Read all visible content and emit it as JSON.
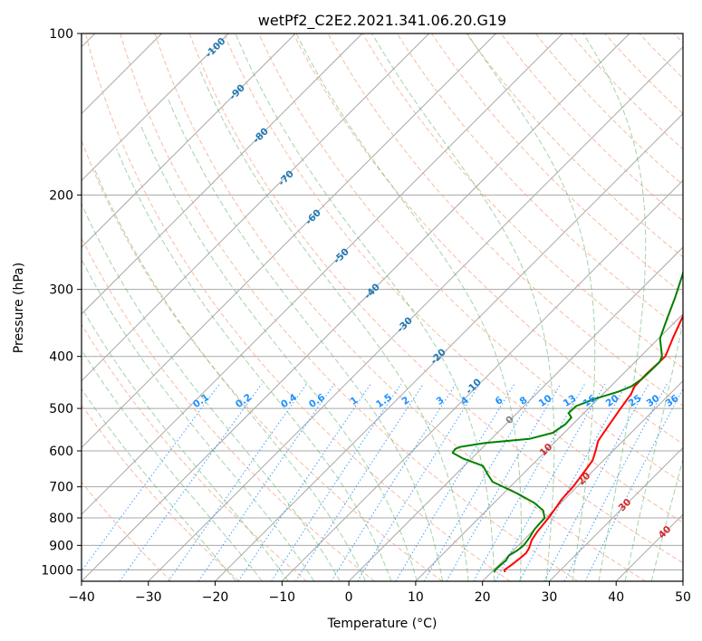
{
  "chart_data": {
    "type": "line",
    "title": "wetPf2_C2E2.2021.341.06.20.G19",
    "xlabel": "Temperature (°C)",
    "ylabel": "Pressure (hPa)",
    "xlim": [
      -40,
      50
    ],
    "ylim": [
      1050,
      100
    ],
    "xticks": [
      "−40",
      "−30",
      "−20",
      "−10",
      "0",
      "10",
      "20",
      "30",
      "40",
      "50"
    ],
    "yticks": [
      "100",
      "200",
      "300",
      "400",
      "500",
      "600",
      "700",
      "800",
      "900",
      "1000"
    ],
    "dry_adiabat_labels": [
      "-100",
      "-90",
      "-80",
      "-70",
      "-60",
      "-50",
      "-40",
      "-30",
      "-20",
      "-10"
    ],
    "mixing_ratio_labels": [
      "0.1",
      "0.2",
      "0.4",
      "0.6",
      "1",
      "1.5",
      "2",
      "3",
      "4",
      "6",
      "8",
      "10",
      "13",
      "16",
      "20",
      "25",
      "30",
      "36"
    ],
    "moist_adiabat_labels": [
      "0",
      "10",
      "20",
      "30",
      "40"
    ],
    "series": [
      {
        "name": "Temperature",
        "color": "#ff0000",
        "points": [
          [
            22.0,
            1010
          ],
          [
            21.6,
            1000
          ],
          [
            21.9,
            980
          ],
          [
            22.2,
            950
          ],
          [
            22.3,
            930
          ],
          [
            22.0,
            910
          ],
          [
            21.2,
            880
          ],
          [
            20.8,
            850
          ],
          [
            20.4,
            800
          ],
          [
            19.9,
            760
          ],
          [
            19.6,
            740
          ],
          [
            19.4,
            700
          ],
          [
            18.9,
            660
          ],
          [
            18.4,
            625
          ],
          [
            17.2,
            595
          ],
          [
            16.3,
            575
          ],
          [
            15.6,
            540
          ],
          [
            14.8,
            500
          ],
          [
            14.2,
            470
          ],
          [
            13.6,
            455
          ],
          [
            13.5,
            430
          ],
          [
            13.7,
            400
          ],
          [
            12.1,
            370
          ],
          [
            10.5,
            340
          ],
          [
            8.2,
            300
          ],
          [
            4.4,
            260
          ],
          [
            1.0,
            235
          ],
          [
            -2.2,
            215
          ],
          [
            -5.1,
            195
          ],
          [
            -5.2,
            185
          ],
          [
            -4.6,
            176
          ],
          [
            -4.9,
            170
          ],
          [
            -5.1,
            165
          ],
          [
            -4.0,
            160
          ],
          [
            -3.0,
            150
          ],
          [
            -2.7,
            145
          ],
          [
            -1.6,
            140
          ],
          [
            -1.9,
            130
          ],
          [
            -1.6,
            126
          ],
          [
            -0.8,
            121
          ],
          [
            1.2,
            117
          ],
          [
            5.8,
            113
          ],
          [
            8.9,
            110
          ],
          [
            11.0,
            106
          ],
          [
            13.5,
            102
          ],
          [
            14.8,
            100
          ]
        ]
      },
      {
        "name": "Dewpoint",
        "color": "#008000",
        "points": [
          [
            20.4,
            1010
          ],
          [
            20.2,
            1000
          ],
          [
            20.4,
            960
          ],
          [
            20.1,
            940
          ],
          [
            20.6,
            920
          ],
          [
            20.8,
            900
          ],
          [
            20.5,
            870
          ],
          [
            20.0,
            840
          ],
          [
            19.8,
            800
          ],
          [
            18.5,
            775
          ],
          [
            16.0,
            750
          ],
          [
            12.0,
            720
          ],
          [
            6.6,
            685
          ],
          [
            4.9,
            665
          ],
          [
            2.8,
            640
          ],
          [
            -1.3,
            620
          ],
          [
            -3.7,
            605
          ],
          [
            -3.9,
            595
          ],
          [
            -3.5,
            590
          ],
          [
            -0.3,
            580
          ],
          [
            5.7,
            570
          ],
          [
            8.3,
            555
          ],
          [
            8.9,
            535
          ],
          [
            8.8,
            520
          ],
          [
            7.7,
            510
          ],
          [
            7.8,
            495
          ],
          [
            9.5,
            480
          ],
          [
            12.0,
            465
          ],
          [
            13.1,
            455
          ],
          [
            13.6,
            440
          ],
          [
            13.7,
            410
          ],
          [
            13.2,
            400
          ],
          [
            10.2,
            370
          ],
          [
            8.3,
            340
          ],
          [
            6.3,
            310
          ],
          [
            3.9,
            280
          ],
          [
            0.3,
            245
          ],
          [
            -1.8,
            220
          ],
          [
            -5.0,
            200
          ],
          [
            -8.0,
            185
          ],
          [
            -8.2,
            180
          ],
          [
            -7.9,
            175
          ],
          [
            -7.5,
            165
          ],
          [
            -7.6,
            155
          ],
          [
            -7.9,
            148
          ],
          [
            -8.3,
            140
          ],
          [
            -8.3,
            135
          ],
          [
            -7.4,
            130
          ],
          [
            -6.3,
            125
          ],
          [
            -5.6,
            120
          ],
          [
            -5.2,
            115
          ],
          [
            -4.8,
            110
          ],
          [
            -4.0,
            105
          ],
          [
            -3.4,
            100
          ]
        ]
      }
    ]
  }
}
